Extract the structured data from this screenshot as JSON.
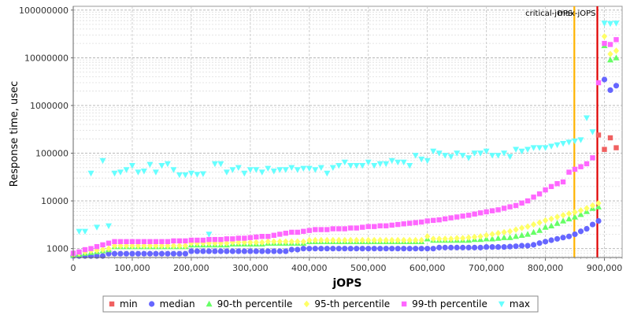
{
  "chart_data": {
    "type": "scatter",
    "xlabel": "jOPS",
    "ylabel": "Response time, usec",
    "xlim": [
      0,
      930000
    ],
    "ylim": [
      650,
      120000000
    ],
    "yscale": "log",
    "grid": true,
    "legend_position": "bottom",
    "x_ticks": [
      0,
      100000,
      200000,
      300000,
      400000,
      500000,
      600000,
      700000,
      800000,
      900000
    ],
    "x_tick_labels": [
      "0",
      "100,000",
      "200,000",
      "300,000",
      "400,000",
      "500,000",
      "600,000",
      "700,000",
      "800,000",
      "900,000"
    ],
    "y_ticks": [
      1000,
      10000,
      100000,
      1000000,
      10000000,
      100000000
    ],
    "y_tick_labels": [
      "1000",
      "10000",
      "100000",
      "1000000",
      "10000000",
      "100000000"
    ],
    "markers": [
      {
        "label": "critical-jOPS",
        "x": 849000,
        "color": "#ffb300"
      },
      {
        "label": "max-jOPS",
        "x": 888000,
        "color": "#e00000"
      }
    ],
    "series": [
      {
        "name": "min",
        "color": "#f06060",
        "shape": "square",
        "x": [
          890000,
          900000,
          910000,
          920000
        ],
        "y": [
          240000,
          120000,
          210000,
          130000
        ]
      },
      {
        "name": "median",
        "color": "#6666ff",
        "shape": "circle",
        "x": [
          0,
          10000,
          20000,
          30000,
          40000,
          50000,
          60000,
          70000,
          80000,
          90000,
          100000,
          110000,
          120000,
          130000,
          140000,
          150000,
          160000,
          170000,
          180000,
          190000,
          200000,
          210000,
          220000,
          230000,
          240000,
          250000,
          260000,
          270000,
          280000,
          290000,
          300000,
          310000,
          320000,
          330000,
          340000,
          350000,
          360000,
          370000,
          380000,
          390000,
          400000,
          410000,
          420000,
          430000,
          440000,
          450000,
          460000,
          470000,
          480000,
          490000,
          500000,
          510000,
          520000,
          530000,
          540000,
          550000,
          560000,
          570000,
          580000,
          590000,
          600000,
          610000,
          620000,
          630000,
          640000,
          650000,
          660000,
          670000,
          680000,
          690000,
          700000,
          710000,
          720000,
          730000,
          740000,
          750000,
          760000,
          770000,
          780000,
          790000,
          800000,
          810000,
          820000,
          830000,
          840000,
          850000,
          860000,
          870000,
          880000,
          890000,
          900000,
          910000,
          920000
        ],
        "y": [
          700,
          700,
          700,
          700,
          700,
          700,
          780,
          780,
          780,
          780,
          780,
          780,
          780,
          780,
          780,
          780,
          780,
          780,
          780,
          780,
          880,
          880,
          880,
          880,
          880,
          880,
          880,
          880,
          880,
          880,
          880,
          880,
          880,
          880,
          880,
          880,
          880,
          950,
          950,
          1000,
          1000,
          1000,
          1000,
          1000,
          1000,
          1000,
          1000,
          1000,
          1000,
          1000,
          1000,
          1000,
          1000,
          1000,
          1000,
          1000,
          1000,
          1000,
          1000,
          1000,
          1000,
          1000,
          1050,
          1050,
          1050,
          1050,
          1050,
          1050,
          1050,
          1050,
          1080,
          1080,
          1080,
          1080,
          1100,
          1120,
          1150,
          1150,
          1200,
          1300,
          1400,
          1500,
          1600,
          1700,
          1800,
          2000,
          2300,
          2600,
          3200,
          3800,
          3500000,
          2100000,
          2600000
        ]
      },
      {
        "name": "90-th percentile",
        "color": "#66ff66",
        "shape": "triangle",
        "x": [
          0,
          10000,
          20000,
          30000,
          40000,
          50000,
          60000,
          70000,
          80000,
          90000,
          100000,
          110000,
          120000,
          130000,
          140000,
          150000,
          160000,
          170000,
          180000,
          190000,
          200000,
          210000,
          220000,
          230000,
          240000,
          250000,
          260000,
          270000,
          280000,
          290000,
          300000,
          310000,
          320000,
          330000,
          340000,
          350000,
          360000,
          370000,
          380000,
          390000,
          400000,
          410000,
          420000,
          430000,
          440000,
          450000,
          460000,
          470000,
          480000,
          490000,
          500000,
          510000,
          520000,
          530000,
          540000,
          550000,
          560000,
          570000,
          580000,
          590000,
          600000,
          610000,
          620000,
          630000,
          640000,
          650000,
          660000,
          670000,
          680000,
          690000,
          700000,
          710000,
          720000,
          730000,
          740000,
          750000,
          760000,
          770000,
          780000,
          790000,
          800000,
          810000,
          820000,
          830000,
          840000,
          850000,
          860000,
          870000,
          880000,
          890000,
          900000,
          910000,
          920000
        ],
        "y": [
          720,
          760,
          800,
          830,
          860,
          900,
          950,
          1100,
          1100,
          1100,
          1100,
          1100,
          1100,
          1100,
          1100,
          1100,
          1100,
          1100,
          1100,
          1100,
          1200,
          1200,
          1200,
          1200,
          1200,
          1200,
          1200,
          1250,
          1250,
          1250,
          1250,
          1250,
          1250,
          1300,
          1300,
          1300,
          1300,
          1300,
          1300,
          1300,
          1400,
          1400,
          1400,
          1400,
          1400,
          1400,
          1400,
          1400,
          1400,
          1400,
          1400,
          1400,
          1400,
          1400,
          1400,
          1400,
          1400,
          1400,
          1400,
          1400,
          1600,
          1500,
          1500,
          1500,
          1500,
          1500,
          1500,
          1500,
          1550,
          1550,
          1600,
          1600,
          1650,
          1700,
          1700,
          1800,
          1900,
          2000,
          2200,
          2400,
          2800,
          3000,
          3400,
          3800,
          4200,
          4600,
          5200,
          6000,
          7000,
          7500,
          18000000,
          9000000,
          10000000
        ]
      },
      {
        "name": "95-th percentile",
        "color": "#ffff66",
        "shape": "diamond",
        "x": [
          0,
          10000,
          20000,
          30000,
          40000,
          50000,
          60000,
          70000,
          80000,
          90000,
          100000,
          110000,
          120000,
          130000,
          140000,
          150000,
          160000,
          170000,
          180000,
          190000,
          200000,
          210000,
          220000,
          230000,
          240000,
          250000,
          260000,
          270000,
          280000,
          290000,
          300000,
          310000,
          320000,
          330000,
          340000,
          350000,
          360000,
          370000,
          380000,
          390000,
          400000,
          410000,
          420000,
          430000,
          440000,
          450000,
          460000,
          470000,
          480000,
          490000,
          500000,
          510000,
          520000,
          530000,
          540000,
          550000,
          560000,
          570000,
          580000,
          590000,
          600000,
          610000,
          620000,
          630000,
          640000,
          650000,
          660000,
          670000,
          680000,
          690000,
          700000,
          710000,
          720000,
          730000,
          740000,
          750000,
          760000,
          770000,
          780000,
          790000,
          800000,
          810000,
          820000,
          830000,
          840000,
          850000,
          860000,
          870000,
          880000,
          890000,
          900000,
          910000,
          920000
        ],
        "y": [
          750,
          800,
          850,
          900,
          920,
          950,
          1000,
          1150,
          1150,
          1150,
          1150,
          1150,
          1150,
          1150,
          1150,
          1150,
          1150,
          1150,
          1150,
          1150,
          1300,
          1300,
          1300,
          1300,
          1300,
          1300,
          1300,
          1350,
          1350,
          1350,
          1350,
          1350,
          1350,
          1400,
          1400,
          1400,
          1400,
          1400,
          1400,
          1400,
          1500,
          1500,
          1500,
          1500,
          1500,
          1500,
          1500,
          1500,
          1500,
          1500,
          1500,
          1500,
          1500,
          1500,
          1500,
          1500,
          1500,
          1500,
          1500,
          1500,
          1800,
          1600,
          1600,
          1600,
          1600,
          1650,
          1650,
          1700,
          1750,
          1800,
          1900,
          2000,
          2100,
          2200,
          2300,
          2500,
          2700,
          2900,
          3200,
          3500,
          3900,
          4200,
          4600,
          5000,
          5400,
          5800,
          6300,
          7000,
          8000,
          9000,
          28000000,
          12000000,
          14000000
        ]
      },
      {
        "name": "99-th percentile",
        "color": "#ff66ff",
        "shape": "square",
        "x": [
          0,
          10000,
          20000,
          30000,
          40000,
          50000,
          60000,
          70000,
          80000,
          90000,
          100000,
          110000,
          120000,
          130000,
          140000,
          150000,
          160000,
          170000,
          180000,
          190000,
          200000,
          210000,
          220000,
          230000,
          240000,
          250000,
          260000,
          270000,
          280000,
          290000,
          300000,
          310000,
          320000,
          330000,
          340000,
          350000,
          360000,
          370000,
          380000,
          390000,
          400000,
          410000,
          420000,
          430000,
          440000,
          450000,
          460000,
          470000,
          480000,
          490000,
          500000,
          510000,
          520000,
          530000,
          540000,
          550000,
          560000,
          570000,
          580000,
          590000,
          600000,
          610000,
          620000,
          630000,
          640000,
          650000,
          660000,
          670000,
          680000,
          690000,
          700000,
          710000,
          720000,
          730000,
          740000,
          750000,
          760000,
          770000,
          780000,
          790000,
          800000,
          810000,
          820000,
          830000,
          840000,
          850000,
          860000,
          870000,
          880000,
          890000,
          900000,
          910000,
          920000
        ],
        "y": [
          800,
          850,
          950,
          1000,
          1100,
          1200,
          1300,
          1400,
          1400,
          1400,
          1400,
          1400,
          1400,
          1400,
          1400,
          1400,
          1400,
          1450,
          1450,
          1450,
          1500,
          1500,
          1500,
          1550,
          1550,
          1550,
          1600,
          1600,
          1650,
          1650,
          1700,
          1750,
          1800,
          1800,
          1900,
          2000,
          2100,
          2200,
          2200,
          2300,
          2400,
          2500,
          2500,
          2500,
          2600,
          2600,
          2600,
          2700,
          2700,
          2800,
          2900,
          2900,
          3000,
          3000,
          3100,
          3200,
          3300,
          3400,
          3500,
          3600,
          3800,
          3900,
          4000,
          4200,
          4400,
          4600,
          4800,
          5000,
          5300,
          5600,
          5900,
          6200,
          6500,
          7000,
          7500,
          8000,
          9000,
          10000,
          12000,
          14000,
          17000,
          20000,
          23000,
          25000,
          40000,
          46000,
          52000,
          60000,
          80000,
          3000000,
          20000000,
          19000000,
          24000000
        ]
      },
      {
        "name": "max",
        "color": "#66ffff",
        "shape": "triangle-down",
        "x": [
          10000,
          20000,
          30000,
          40000,
          50000,
          60000,
          70000,
          80000,
          90000,
          100000,
          110000,
          120000,
          130000,
          140000,
          150000,
          160000,
          170000,
          180000,
          190000,
          200000,
          210000,
          220000,
          230000,
          240000,
          250000,
          260000,
          270000,
          280000,
          290000,
          300000,
          310000,
          320000,
          330000,
          340000,
          350000,
          360000,
          370000,
          380000,
          390000,
          400000,
          410000,
          420000,
          430000,
          440000,
          450000,
          460000,
          470000,
          480000,
          490000,
          500000,
          510000,
          520000,
          530000,
          540000,
          550000,
          560000,
          570000,
          580000,
          590000,
          600000,
          610000,
          620000,
          630000,
          640000,
          650000,
          660000,
          670000,
          680000,
          690000,
          700000,
          710000,
          720000,
          730000,
          740000,
          750000,
          760000,
          770000,
          780000,
          790000,
          800000,
          810000,
          820000,
          830000,
          840000,
          850000,
          860000,
          870000,
          880000,
          900000,
          910000,
          920000
        ],
        "y": [
          2300,
          2300,
          38000,
          2800,
          70000,
          3000,
          38000,
          40000,
          45000,
          55000,
          40000,
          42000,
          58000,
          40000,
          55000,
          60000,
          45000,
          35000,
          35000,
          38000,
          36000,
          37000,
          2000,
          60000,
          60000,
          40000,
          45000,
          50000,
          38000,
          45000,
          45000,
          40000,
          48000,
          42000,
          45000,
          45000,
          50000,
          45000,
          48000,
          48000,
          45000,
          50000,
          38000,
          50000,
          55000,
          65000,
          55000,
          55000,
          55000,
          65000,
          55000,
          60000,
          60000,
          70000,
          65000,
          65000,
          55000,
          90000,
          75000,
          70000,
          110000,
          100000,
          90000,
          85000,
          100000,
          90000,
          80000,
          100000,
          100000,
          110000,
          90000,
          90000,
          100000,
          85000,
          120000,
          110000,
          120000,
          130000,
          130000,
          130000,
          140000,
          150000,
          160000,
          170000,
          180000,
          190000,
          550000,
          280000,
          53000000,
          52000000,
          53000000
        ]
      }
    ]
  }
}
